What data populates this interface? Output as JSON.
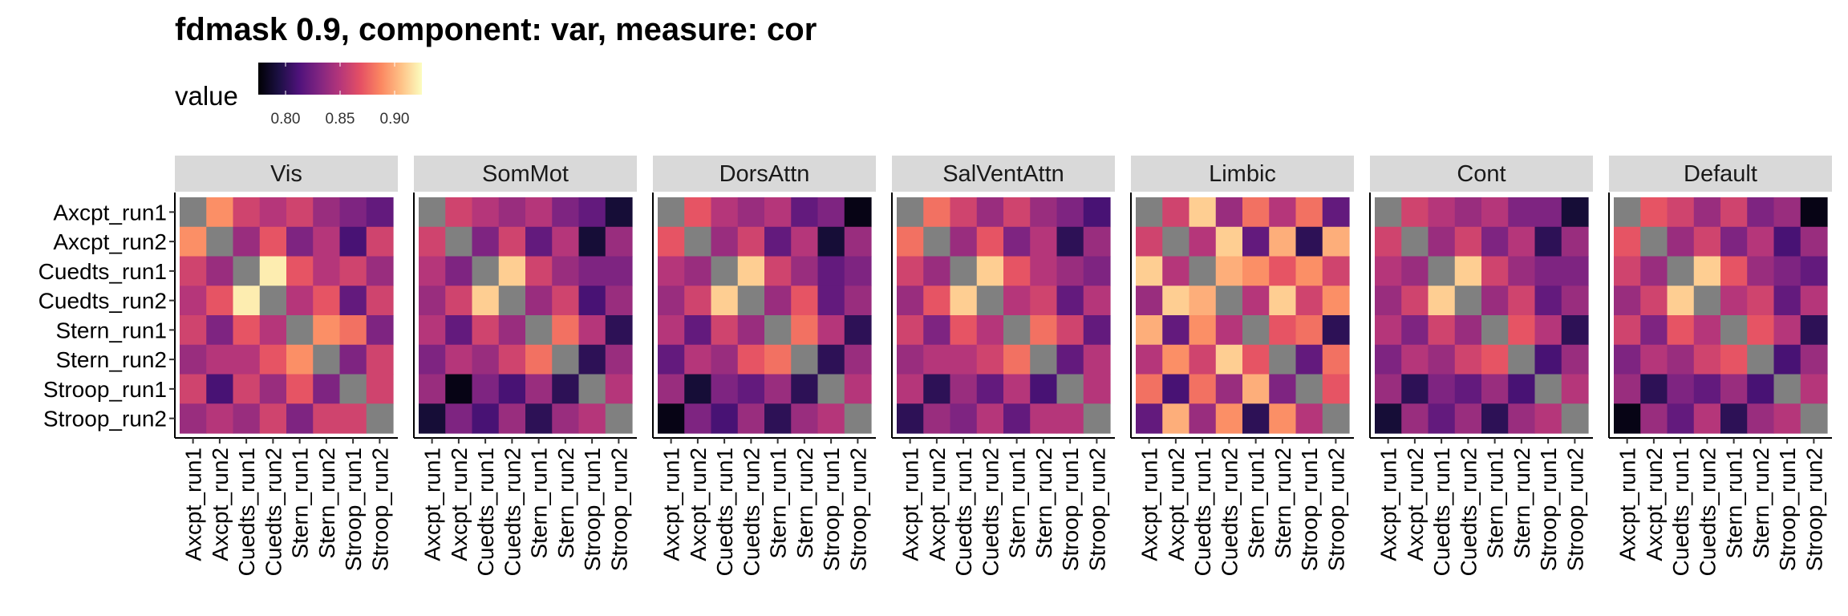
{
  "chart_data": {
    "type": "heatmap",
    "title": "fdmask 0.9, component: var, measure: cor",
    "legend": {
      "title": "value",
      "ticks": [
        0.8,
        0.85,
        0.9
      ],
      "tick_labels": [
        "0.80",
        "0.85",
        "0.90"
      ],
      "range": [
        0.775,
        0.925
      ],
      "placement": "top"
    },
    "labels": [
      "Axcpt_run1",
      "Axcpt_run2",
      "Cuedts_run1",
      "Cuedts_run2",
      "Stern_run1",
      "Stern_run2",
      "Stroop_run1",
      "Stroop_run2"
    ],
    "diagonal_color": "#808080",
    "colormap": [
      "#000004",
      "#1c1044",
      "#4f127b",
      "#812581",
      "#b5367a",
      "#e55064",
      "#fb8761",
      "#fec287",
      "#fcfdbf"
    ],
    "panels": [
      {
        "name": "Vis",
        "matrix": [
          [
            null,
            0.89,
            0.86,
            0.85,
            0.86,
            0.84,
            0.83,
            0.82
          ],
          [
            0.89,
            null,
            0.84,
            0.87,
            0.83,
            0.85,
            0.81,
            0.86
          ],
          [
            0.86,
            0.84,
            null,
            0.92,
            0.87,
            0.85,
            0.86,
            0.84
          ],
          [
            0.85,
            0.87,
            0.92,
            null,
            0.85,
            0.87,
            0.82,
            0.86
          ],
          [
            0.86,
            0.83,
            0.87,
            0.85,
            null,
            0.89,
            0.88,
            0.83
          ],
          [
            0.84,
            0.85,
            0.85,
            0.87,
            0.89,
            null,
            0.83,
            0.86
          ],
          [
            0.86,
            0.81,
            0.86,
            0.84,
            0.87,
            0.83,
            null,
            0.86
          ],
          [
            0.84,
            0.85,
            0.84,
            0.86,
            0.83,
            0.86,
            0.86,
            null
          ]
        ]
      },
      {
        "name": "SomMot",
        "matrix": [
          [
            null,
            0.86,
            0.85,
            0.84,
            0.85,
            0.83,
            0.82,
            0.79
          ],
          [
            0.86,
            null,
            0.83,
            0.86,
            0.82,
            0.85,
            0.79,
            0.84
          ],
          [
            0.85,
            0.83,
            null,
            0.91,
            0.86,
            0.84,
            0.83,
            0.83
          ],
          [
            0.84,
            0.86,
            0.91,
            null,
            0.84,
            0.86,
            0.81,
            0.84
          ],
          [
            0.85,
            0.82,
            0.86,
            0.84,
            null,
            0.88,
            0.85,
            0.8
          ],
          [
            0.83,
            0.85,
            0.84,
            0.86,
            0.88,
            null,
            0.8,
            0.84
          ],
          [
            0.84,
            0.78,
            0.83,
            0.81,
            0.84,
            0.8,
            null,
            0.85
          ],
          [
            0.79,
            0.83,
            0.81,
            0.84,
            0.8,
            0.84,
            0.85,
            null
          ]
        ]
      },
      {
        "name": "DorsAttn",
        "matrix": [
          [
            null,
            0.87,
            0.85,
            0.84,
            0.85,
            0.82,
            0.83,
            0.78
          ],
          [
            0.87,
            null,
            0.84,
            0.86,
            0.82,
            0.85,
            0.79,
            0.84
          ],
          [
            0.85,
            0.84,
            null,
            0.91,
            0.86,
            0.84,
            0.82,
            0.83
          ],
          [
            0.84,
            0.86,
            0.91,
            null,
            0.84,
            0.87,
            0.82,
            0.84
          ],
          [
            0.85,
            0.82,
            0.86,
            0.84,
            null,
            0.88,
            0.85,
            0.8
          ],
          [
            0.82,
            0.85,
            0.84,
            0.87,
            0.88,
            null,
            0.8,
            0.84
          ],
          [
            0.84,
            0.79,
            0.83,
            0.82,
            0.84,
            0.8,
            null,
            0.85
          ],
          [
            0.78,
            0.83,
            0.81,
            0.84,
            0.8,
            0.84,
            0.85,
            null
          ]
        ]
      },
      {
        "name": "SalVentAttn",
        "matrix": [
          [
            null,
            0.88,
            0.86,
            0.84,
            0.86,
            0.84,
            0.83,
            0.81
          ],
          [
            0.88,
            null,
            0.84,
            0.87,
            0.83,
            0.85,
            0.8,
            0.84
          ],
          [
            0.86,
            0.84,
            null,
            0.91,
            0.87,
            0.85,
            0.84,
            0.83
          ],
          [
            0.84,
            0.87,
            0.91,
            null,
            0.85,
            0.86,
            0.82,
            0.85
          ],
          [
            0.86,
            0.83,
            0.87,
            0.85,
            null,
            0.88,
            0.86,
            0.82
          ],
          [
            0.84,
            0.85,
            0.85,
            0.86,
            0.88,
            null,
            0.82,
            0.85
          ],
          [
            0.85,
            0.8,
            0.84,
            0.82,
            0.85,
            0.81,
            null,
            0.85
          ],
          [
            0.8,
            0.84,
            0.83,
            0.85,
            0.82,
            0.85,
            0.85,
            null
          ]
        ]
      },
      {
        "name": "Limbic",
        "matrix": [
          [
            null,
            0.86,
            0.91,
            0.84,
            0.88,
            0.85,
            0.88,
            0.82
          ],
          [
            0.86,
            null,
            0.85,
            0.91,
            0.82,
            0.9,
            0.8,
            0.9
          ],
          [
            0.91,
            0.85,
            null,
            0.9,
            0.89,
            0.87,
            0.89,
            0.86
          ],
          [
            0.84,
            0.91,
            0.9,
            null,
            0.85,
            0.91,
            0.86,
            0.89
          ],
          [
            0.9,
            0.82,
            0.89,
            0.85,
            null,
            0.87,
            0.88,
            0.8
          ],
          [
            0.85,
            0.89,
            0.86,
            0.91,
            0.87,
            null,
            0.82,
            0.88
          ],
          [
            0.88,
            0.81,
            0.88,
            0.84,
            0.9,
            0.83,
            null,
            0.87
          ],
          [
            0.82,
            0.9,
            0.84,
            0.89,
            0.8,
            0.89,
            0.85,
            null
          ]
        ]
      },
      {
        "name": "Cont",
        "matrix": [
          [
            null,
            0.86,
            0.85,
            0.84,
            0.85,
            0.83,
            0.83,
            0.79
          ],
          [
            0.86,
            null,
            0.84,
            0.86,
            0.83,
            0.85,
            0.8,
            0.84
          ],
          [
            0.85,
            0.84,
            null,
            0.91,
            0.86,
            0.84,
            0.83,
            0.83
          ],
          [
            0.84,
            0.86,
            0.91,
            null,
            0.84,
            0.86,
            0.82,
            0.84
          ],
          [
            0.85,
            0.83,
            0.86,
            0.84,
            null,
            0.87,
            0.85,
            0.8
          ],
          [
            0.83,
            0.85,
            0.84,
            0.86,
            0.87,
            null,
            0.81,
            0.84
          ],
          [
            0.84,
            0.8,
            0.83,
            0.82,
            0.84,
            0.81,
            null,
            0.85
          ],
          [
            0.79,
            0.84,
            0.82,
            0.84,
            0.8,
            0.84,
            0.85,
            null
          ]
        ]
      },
      {
        "name": "Default",
        "matrix": [
          [
            null,
            0.87,
            0.86,
            0.84,
            0.86,
            0.83,
            0.84,
            0.78
          ],
          [
            0.87,
            null,
            0.84,
            0.86,
            0.83,
            0.85,
            0.81,
            0.84
          ],
          [
            0.86,
            0.84,
            null,
            0.91,
            0.87,
            0.84,
            0.83,
            0.82
          ],
          [
            0.84,
            0.86,
            0.91,
            null,
            0.85,
            0.86,
            0.82,
            0.85
          ],
          [
            0.86,
            0.83,
            0.87,
            0.85,
            null,
            0.87,
            0.85,
            0.8
          ],
          [
            0.83,
            0.85,
            0.84,
            0.86,
            0.87,
            null,
            0.81,
            0.84
          ],
          [
            0.84,
            0.8,
            0.83,
            0.82,
            0.84,
            0.81,
            null,
            0.85
          ],
          [
            0.78,
            0.84,
            0.82,
            0.85,
            0.8,
            0.84,
            0.85,
            null
          ]
        ]
      }
    ]
  }
}
